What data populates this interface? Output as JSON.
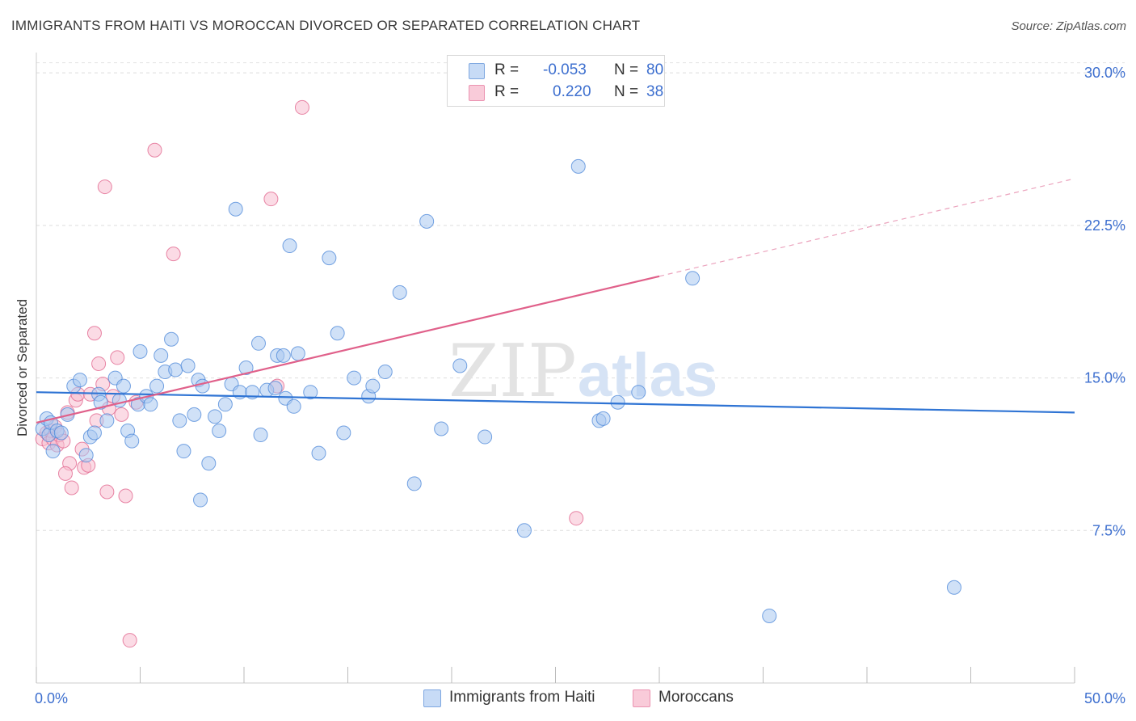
{
  "header": {
    "title": "IMMIGRANTS FROM HAITI VS MOROCCAN DIVORCED OR SEPARATED CORRELATION CHART",
    "source": "Source: ZipAtlas.com"
  },
  "watermark": {
    "zip": "ZIP",
    "atlas": "atlas"
  },
  "legend": {
    "rows": [
      {
        "r_label": "R =",
        "r_value": "-0.053",
        "n_label": "N =",
        "n_value": "80",
        "color": "#aac8f0"
      },
      {
        "r_label": "R =",
        "r_value": "0.220",
        "n_label": "N =",
        "n_value": "38",
        "color": "#f7bdd0"
      }
    ]
  },
  "bottom_legend": {
    "series1": "Immigrants from Haiti",
    "series2": "Moroccans"
  },
  "chart_data": {
    "type": "scatter",
    "title": "IMMIGRANTS FROM HAITI VS MOROCCAN DIVORCED OR SEPARATED CORRELATION CHART",
    "xlabel": "",
    "ylabel": "Divorced or Separated",
    "xlim": [
      0,
      50
    ],
    "ylim": [
      0,
      31
    ],
    "x_tick_labels": [
      "0.0%",
      "50.0%"
    ],
    "y_ticks": [
      7.5,
      15.0,
      22.5,
      30.0
    ],
    "y_tick_labels": [
      "7.5%",
      "15.0%",
      "22.5%",
      "30.0%"
    ],
    "grid": true,
    "series": [
      {
        "name": "Immigrants from Haiti",
        "color": "#4a86d8",
        "fill": "#aac8f0",
        "trend": {
          "x": [
            0,
            50
          ],
          "y": [
            14.3,
            13.3
          ],
          "dashed_from": null
        },
        "points": [
          [
            0.3,
            12.5
          ],
          [
            0.5,
            13.0
          ],
          [
            0.6,
            12.2
          ],
          [
            0.7,
            12.8
          ],
          [
            0.8,
            11.4
          ],
          [
            1.0,
            12.4
          ],
          [
            1.2,
            12.3
          ],
          [
            1.5,
            13.2
          ],
          [
            1.8,
            14.6
          ],
          [
            2.1,
            14.9
          ],
          [
            2.4,
            11.2
          ],
          [
            2.6,
            12.1
          ],
          [
            2.8,
            12.3
          ],
          [
            3.0,
            14.2
          ],
          [
            3.1,
            13.8
          ],
          [
            3.4,
            12.9
          ],
          [
            3.8,
            15.0
          ],
          [
            4.0,
            13.9
          ],
          [
            4.2,
            14.6
          ],
          [
            4.4,
            12.4
          ],
          [
            4.6,
            11.9
          ],
          [
            4.9,
            13.7
          ],
          [
            5.0,
            16.3
          ],
          [
            5.3,
            14.1
          ],
          [
            5.5,
            13.7
          ],
          [
            5.8,
            14.6
          ],
          [
            6.0,
            16.1
          ],
          [
            6.2,
            15.3
          ],
          [
            6.5,
            16.9
          ],
          [
            6.7,
            15.4
          ],
          [
            6.9,
            12.9
          ],
          [
            7.1,
            11.4
          ],
          [
            7.3,
            15.6
          ],
          [
            7.6,
            13.2
          ],
          [
            7.8,
            14.9
          ],
          [
            8.0,
            14.6
          ],
          [
            8.3,
            10.8
          ],
          [
            8.6,
            13.1
          ],
          [
            8.8,
            12.4
          ],
          [
            9.1,
            13.7
          ],
          [
            9.4,
            14.7
          ],
          [
            9.6,
            23.3
          ],
          [
            9.8,
            14.3
          ],
          [
            10.1,
            15.5
          ],
          [
            10.4,
            14.3
          ],
          [
            10.7,
            16.7
          ],
          [
            10.8,
            12.2
          ],
          [
            11.1,
            14.4
          ],
          [
            11.5,
            14.5
          ],
          [
            11.6,
            16.1
          ],
          [
            11.9,
            16.1
          ],
          [
            12.0,
            14.0
          ],
          [
            12.2,
            21.5
          ],
          [
            12.4,
            13.6
          ],
          [
            12.6,
            16.2
          ],
          [
            13.2,
            14.3
          ],
          [
            13.6,
            11.3
          ],
          [
            14.1,
            20.9
          ],
          [
            14.5,
            17.2
          ],
          [
            14.8,
            12.3
          ],
          [
            15.3,
            15.0
          ],
          [
            16.0,
            14.1
          ],
          [
            16.2,
            14.6
          ],
          [
            16.8,
            15.3
          ],
          [
            17.5,
            19.2
          ],
          [
            18.2,
            9.8
          ],
          [
            18.8,
            22.7
          ],
          [
            19.5,
            12.5
          ],
          [
            20.4,
            15.6
          ],
          [
            21.6,
            12.1
          ],
          [
            23.5,
            7.5
          ],
          [
            26.1,
            25.4
          ],
          [
            27.1,
            12.9
          ],
          [
            27.3,
            13.0
          ],
          [
            28.0,
            13.8
          ],
          [
            29.0,
            14.3
          ],
          [
            31.6,
            19.9
          ],
          [
            35.3,
            3.3
          ],
          [
            44.2,
            4.7
          ],
          [
            7.9,
            9.0
          ]
        ]
      },
      {
        "name": "Moroccans",
        "color": "#e0608a",
        "fill": "#f7bdd0",
        "trend": {
          "x": [
            0,
            30
          ],
          "y": [
            12.8,
            20.0
          ],
          "dashed_to": [
            50,
            24.8
          ]
        },
        "points": [
          [
            0.3,
            12.0
          ],
          [
            0.5,
            12.3
          ],
          [
            0.6,
            11.8
          ],
          [
            0.7,
            12.4
          ],
          [
            0.8,
            12.0
          ],
          [
            0.9,
            12.6
          ],
          [
            1.0,
            11.7
          ],
          [
            1.1,
            12.2
          ],
          [
            1.3,
            11.9
          ],
          [
            1.5,
            13.3
          ],
          [
            1.6,
            10.8
          ],
          [
            1.7,
            9.6
          ],
          [
            1.9,
            13.9
          ],
          [
            2.0,
            14.2
          ],
          [
            2.2,
            11.5
          ],
          [
            2.3,
            10.6
          ],
          [
            2.5,
            10.7
          ],
          [
            2.6,
            14.2
          ],
          [
            2.8,
            17.2
          ],
          [
            2.9,
            12.9
          ],
          [
            3.0,
            15.7
          ],
          [
            3.2,
            14.7
          ],
          [
            3.3,
            24.4
          ],
          [
            3.4,
            9.4
          ],
          [
            3.5,
            13.5
          ],
          [
            3.7,
            14.1
          ],
          [
            3.9,
            16.0
          ],
          [
            4.1,
            13.2
          ],
          [
            4.3,
            9.2
          ],
          [
            4.5,
            2.1
          ],
          [
            4.8,
            13.8
          ],
          [
            5.7,
            26.2
          ],
          [
            6.6,
            21.1
          ],
          [
            11.3,
            23.8
          ],
          [
            11.6,
            14.6
          ],
          [
            12.8,
            28.3
          ],
          [
            26.0,
            8.1
          ],
          [
            1.4,
            10.3
          ]
        ]
      }
    ]
  }
}
